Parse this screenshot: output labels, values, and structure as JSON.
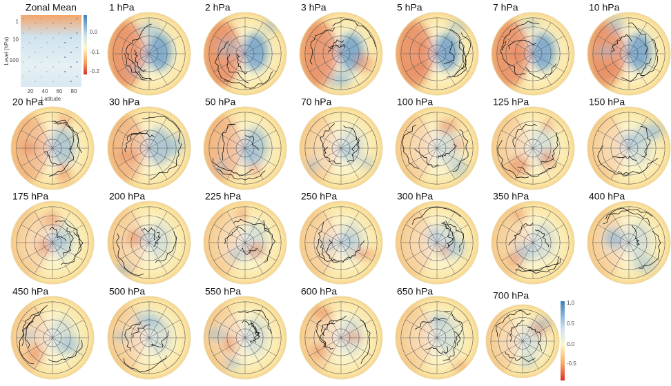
{
  "zonal_mean": {
    "title": "Zonal Mean",
    "ylabel": "Level (hPa)",
    "xlabel": "Latitude",
    "yticks": [
      "1",
      "10",
      "100"
    ],
    "xticks": [
      "20",
      "40",
      "60",
      "80"
    ],
    "colorbar_ticks": [
      "0.0",
      "-0.1",
      "-0.2"
    ]
  },
  "panels": [
    {
      "title": "1 hPa"
    },
    {
      "title": "2 hPa"
    },
    {
      "title": "3 hPa"
    },
    {
      "title": "5 hPa"
    },
    {
      "title": "7 hPa"
    },
    {
      "title": "10 hPa"
    },
    {
      "title": "20 hPa"
    },
    {
      "title": "30 hPa"
    },
    {
      "title": "50 hPa"
    },
    {
      "title": "70 hPa"
    },
    {
      "title": "100 hPa"
    },
    {
      "title": "125 hPa"
    },
    {
      "title": "150 hPa"
    },
    {
      "title": "175 hPa"
    },
    {
      "title": "200 hPa"
    },
    {
      "title": "225 hPa"
    },
    {
      "title": "250 hPa"
    },
    {
      "title": "300 hPa"
    },
    {
      "title": "350 hPa"
    },
    {
      "title": "400 hPa"
    },
    {
      "title": "450 hPa"
    },
    {
      "title": "500 hPa"
    },
    {
      "title": "550 hPa"
    },
    {
      "title": "600 hPa"
    },
    {
      "title": "650 hPa"
    },
    {
      "title": "700 hPa"
    }
  ],
  "colorbar": {
    "ticks": [
      "1.0",
      "0.5",
      "0.0",
      "-0.5"
    ]
  }
}
